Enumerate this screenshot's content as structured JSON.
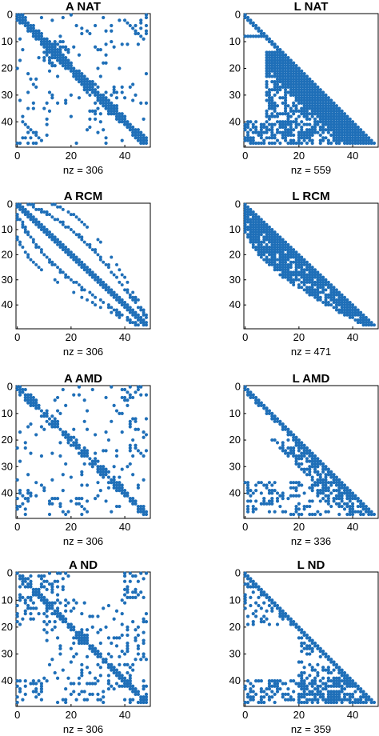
{
  "colors": {
    "marker": "#1f6fb8",
    "axis": "#000000",
    "background": "#ffffff"
  },
  "chart_data": [
    {
      "type": "scatter",
      "title": "A NAT",
      "xlabel": "nz = 306",
      "xlim": [
        0,
        49
      ],
      "ylim": [
        0,
        49
      ],
      "y_reversed": true,
      "xticks": [
        "0",
        "20",
        "40"
      ],
      "yticks": [
        "0",
        "10",
        "20",
        "30",
        "40"
      ],
      "pattern": "sparsity matrix (symmetric)",
      "nz": 306
    },
    {
      "type": "scatter",
      "title": "L NAT",
      "xlabel": "nz = 559",
      "xlim": [
        0,
        49
      ],
      "ylim": [
        0,
        49
      ],
      "y_reversed": true,
      "xticks": [
        "0",
        "20",
        "40"
      ],
      "yticks": [
        "0",
        "10",
        "20",
        "30",
        "40"
      ],
      "pattern": "sparsity matrix (lower triangular)",
      "nz": 559
    },
    {
      "type": "scatter",
      "title": "A RCM",
      "xlabel": "nz = 306",
      "xlim": [
        0,
        49
      ],
      "ylim": [
        0,
        49
      ],
      "y_reversed": true,
      "xticks": [
        "0",
        "20",
        "40"
      ],
      "yticks": [
        "0",
        "10",
        "20",
        "30",
        "40"
      ],
      "pattern": "sparsity matrix (symmetric, banded)",
      "nz": 306
    },
    {
      "type": "scatter",
      "title": "L RCM",
      "xlabel": "nz = 471",
      "xlim": [
        0,
        49
      ],
      "ylim": [
        0,
        49
      ],
      "y_reversed": true,
      "xticks": [
        "0",
        "20",
        "40"
      ],
      "yticks": [
        "0",
        "10",
        "20",
        "30",
        "40"
      ],
      "pattern": "sparsity matrix (lower triangular, banded)",
      "nz": 471
    },
    {
      "type": "scatter",
      "title": "A AMD",
      "xlabel": "nz = 306",
      "xlim": [
        0,
        49
      ],
      "ylim": [
        0,
        49
      ],
      "y_reversed": true,
      "xticks": [
        "0",
        "20",
        "40"
      ],
      "yticks": [
        "0",
        "10",
        "20",
        "30",
        "40"
      ],
      "pattern": "sparsity matrix (symmetric)",
      "nz": 306
    },
    {
      "type": "scatter",
      "title": "L AMD",
      "xlabel": "nz = 336",
      "xlim": [
        0,
        49
      ],
      "ylim": [
        0,
        49
      ],
      "y_reversed": true,
      "xticks": [
        "0",
        "20",
        "40"
      ],
      "yticks": [
        "0",
        "10",
        "20",
        "30",
        "40"
      ],
      "pattern": "sparsity matrix (lower triangular)",
      "nz": 336
    },
    {
      "type": "scatter",
      "title": "A ND",
      "xlabel": "nz = 306",
      "xlim": [
        0,
        49
      ],
      "ylim": [
        0,
        49
      ],
      "y_reversed": true,
      "xticks": [
        "0",
        "20",
        "40"
      ],
      "yticks": [
        "0",
        "10",
        "20",
        "30",
        "40"
      ],
      "pattern": "sparsity matrix (symmetric)",
      "nz": 306
    },
    {
      "type": "scatter",
      "title": "L ND",
      "xlabel": "nz = 359",
      "xlim": [
        0,
        49
      ],
      "ylim": [
        0,
        49
      ],
      "y_reversed": true,
      "xticks": [
        "0",
        "20",
        "40"
      ],
      "yticks": [
        "0",
        "10",
        "20",
        "30",
        "40"
      ],
      "pattern": "sparsity matrix (lower triangular)",
      "nz": 359
    }
  ]
}
